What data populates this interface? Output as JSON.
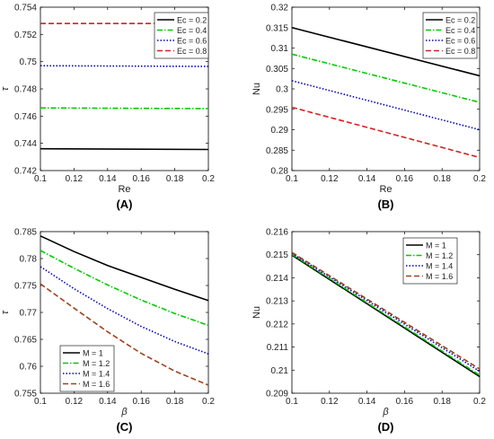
{
  "chart_data": [
    {
      "panel": "(A)",
      "type": "line",
      "xlabel": "Re",
      "ylabel": "τ",
      "xlim": [
        0.1,
        0.2
      ],
      "ylim": [
        0.742,
        0.754
      ],
      "xticks": [
        "0.1",
        "0.12",
        "0.14",
        "0.16",
        "0.18",
        "0.2"
      ],
      "yticks": [
        "0.742",
        "0.744",
        "0.746",
        "0.748",
        "0.75",
        "0.752",
        "0.754"
      ],
      "legend_position": "top-right",
      "x": [
        0.1,
        0.2
      ],
      "series": [
        {
          "name": "Ec = 0.2",
          "values": [
            0.7436,
            0.74355
          ],
          "color": "#000000",
          "dash": "solid"
        },
        {
          "name": "Ec = 0.4",
          "values": [
            0.7466,
            0.74655
          ],
          "color": "#00cc00",
          "dash": "dashdot"
        },
        {
          "name": "Ec = 0.6",
          "values": [
            0.7497,
            0.74965
          ],
          "color": "#0000cc",
          "dash": "dotted"
        },
        {
          "name": "Ec = 0.8",
          "values": [
            0.7528,
            0.7528
          ],
          "color": "#d62020",
          "dash": "dashed"
        }
      ]
    },
    {
      "panel": "(B)",
      "type": "line",
      "xlabel": "Re",
      "ylabel": "Nu",
      "xlim": [
        0.1,
        0.2
      ],
      "ylim": [
        0.28,
        0.32
      ],
      "xticks": [
        "0.1",
        "0.12",
        "0.14",
        "0.16",
        "0.18",
        "0.2"
      ],
      "yticks": [
        "0.28",
        "0.285",
        "0.29",
        "0.295",
        "0.3",
        "0.305",
        "0.31",
        "0.315",
        "0.32"
      ],
      "legend_position": "top-right",
      "x": [
        0.1,
        0.2
      ],
      "series": [
        {
          "name": "Ec = 0.2",
          "values": [
            0.315,
            0.3032
          ],
          "color": "#000000",
          "dash": "solid"
        },
        {
          "name": "Ec = 0.4",
          "values": [
            0.3085,
            0.2967
          ],
          "color": "#00cc00",
          "dash": "dashdot"
        },
        {
          "name": "Ec = 0.6",
          "values": [
            0.302,
            0.29
          ],
          "color": "#0000cc",
          "dash": "dotted"
        },
        {
          "name": "Ec = 0.8",
          "values": [
            0.2955,
            0.2832
          ],
          "color": "#d62020",
          "dash": "dashed"
        }
      ]
    },
    {
      "panel": "(C)",
      "type": "line",
      "xlabel": "β",
      "ylabel": "τ",
      "xlim": [
        0.1,
        0.2
      ],
      "ylim": [
        0.755,
        0.785
      ],
      "xticks": [
        "0.1",
        "0.12",
        "0.14",
        "0.16",
        "0.18",
        "0.2"
      ],
      "yticks": [
        "0.755",
        "0.76",
        "0.765",
        "0.77",
        "0.775",
        "0.78",
        "0.785"
      ],
      "legend_position": "bottom-left",
      "x": [
        0.1,
        0.12,
        0.14,
        0.16,
        0.18,
        0.2
      ],
      "series": [
        {
          "name": "M = 1",
          "values": [
            0.7842,
            0.7813,
            0.7787,
            0.7765,
            0.7743,
            0.7722
          ],
          "color": "#000000",
          "dash": "solid"
        },
        {
          "name": "M = 1.2",
          "values": [
            0.7815,
            0.7782,
            0.7751,
            0.7723,
            0.7698,
            0.7676
          ],
          "color": "#00cc00",
          "dash": "dashdot"
        },
        {
          "name": "M = 1.4",
          "values": [
            0.7785,
            0.7744,
            0.7707,
            0.7674,
            0.7646,
            0.7623
          ],
          "color": "#0000cc",
          "dash": "dotted"
        },
        {
          "name": "M = 1.6",
          "values": [
            0.7753,
            0.7708,
            0.7664,
            0.7624,
            0.7591,
            0.7565
          ],
          "color": "#a0401c",
          "dash": "dashed"
        }
      ]
    },
    {
      "panel": "(D)",
      "type": "line",
      "xlabel": "β",
      "ylabel": "Nu",
      "xlim": [
        0.1,
        0.2
      ],
      "ylim": [
        0.209,
        0.216
      ],
      "xticks": [
        "0.1",
        "0.12",
        "0.14",
        "0.16",
        "0.18",
        "0.2"
      ],
      "yticks": [
        "0.209",
        "0.21",
        "0.211",
        "0.212",
        "0.213",
        "0.214",
        "0.215",
        "0.216"
      ],
      "legend_position": "top-right",
      "x": [
        0.1,
        0.2
      ],
      "series": [
        {
          "name": "M = 1",
          "values": [
            0.21498,
            0.20972
          ],
          "color": "#000000",
          "dash": "solid"
        },
        {
          "name": "M = 1.2",
          "values": [
            0.21502,
            0.20978
          ],
          "color": "#00cc00",
          "dash": "dashdot"
        },
        {
          "name": "M = 1.4",
          "values": [
            0.21506,
            0.20995
          ],
          "color": "#0000cc",
          "dash": "dotted"
        },
        {
          "name": "M = 1.6",
          "values": [
            0.2151,
            0.21005
          ],
          "color": "#a0401c",
          "dash": "dashed"
        }
      ]
    }
  ]
}
